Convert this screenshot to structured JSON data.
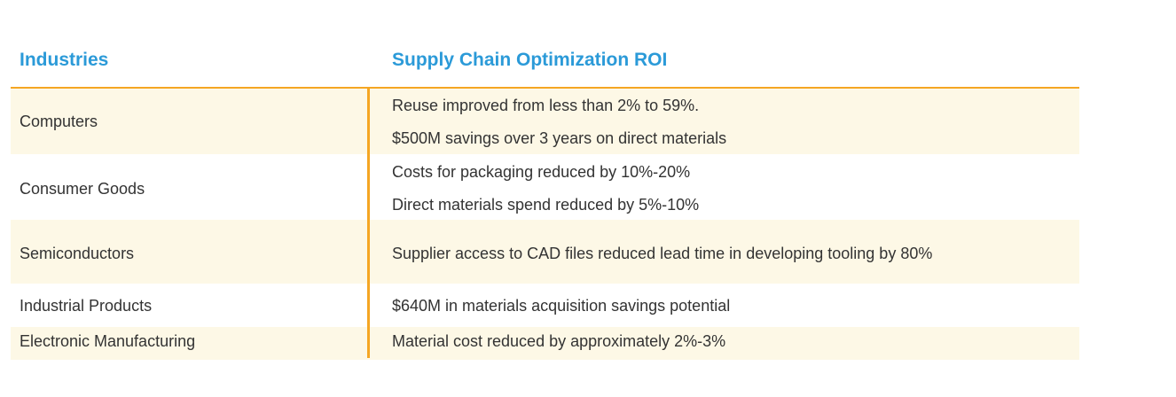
{
  "headers": {
    "industries": "Industries",
    "roi": "Supply Chain Optimization ROI"
  },
  "rows": [
    {
      "industry": "Computers",
      "roi": [
        "Reuse improved from less than 2% to 59%.",
        "$500M savings over 3 years on direct materials"
      ]
    },
    {
      "industry": "Consumer Goods",
      "roi": [
        "Costs for packaging reduced by 10%-20%",
        "Direct materials spend reduced by 5%-10%"
      ]
    },
    {
      "industry": "Semiconductors",
      "roi": [
        "Supplier access to CAD files reduced lead time in developing tooling by 80%"
      ]
    },
    {
      "industry": "Industrial Products",
      "roi": [
        "$640M in materials acquisition savings potential"
      ]
    },
    {
      "industry": "Electronic Manufacturing",
      "roi": [
        "Material cost reduced by approximately 2%-3%"
      ]
    }
  ]
}
